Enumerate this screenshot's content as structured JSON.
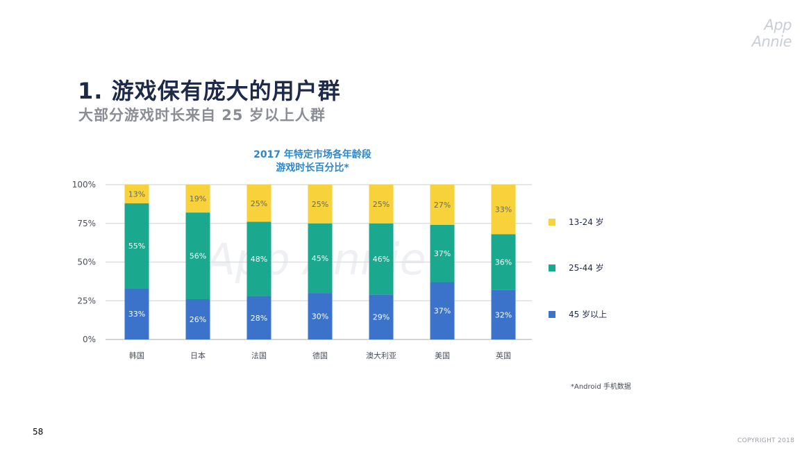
{
  "header": {
    "logo_text": "App Annie",
    "title": "1. 游戏保有庞大的用户群",
    "subtitle": "大部分游戏时长来自 25 岁以上人群"
  },
  "chart_data": {
    "type": "bar",
    "stacked": true,
    "title_lines": [
      "2017 年特定市场各年龄段",
      "游戏时长百分比*"
    ],
    "categories": [
      "韩国",
      "日本",
      "法国",
      "德国",
      "澳大利亚",
      "美国",
      "英国"
    ],
    "series": [
      {
        "name": "45 岁以上",
        "color": "#3a73c9",
        "label_color": "#ffffff",
        "values": [
          33,
          26,
          28,
          30,
          29,
          37,
          32
        ]
      },
      {
        "name": "25-44 岁",
        "color": "#1aa88e",
        "label_color": "#ffffff",
        "values": [
          55,
          56,
          48,
          45,
          46,
          37,
          36
        ]
      },
      {
        "name": "13-24 岁",
        "color": "#f7d23b",
        "label_color": "#6b6a5a",
        "values": [
          13,
          19,
          25,
          25,
          25,
          27,
          33
        ]
      }
    ],
    "y_ticks": [
      "0%",
      "25%",
      "50%",
      "75%",
      "100%"
    ],
    "ylim": [
      0,
      100
    ],
    "grid": true,
    "watermark": "App Annie",
    "legend_position": "right"
  },
  "legend": {
    "items": [
      {
        "label": "13-24 岁",
        "color": "#f7d23b"
      },
      {
        "label": "25-44 岁",
        "color": "#1aa88e"
      },
      {
        "label": "45 岁以上",
        "color": "#3a73c9"
      }
    ]
  },
  "footnote": "*Android 手机数据",
  "footer": {
    "page_number": "58",
    "copyright": "COPYRIGHT 2018"
  }
}
